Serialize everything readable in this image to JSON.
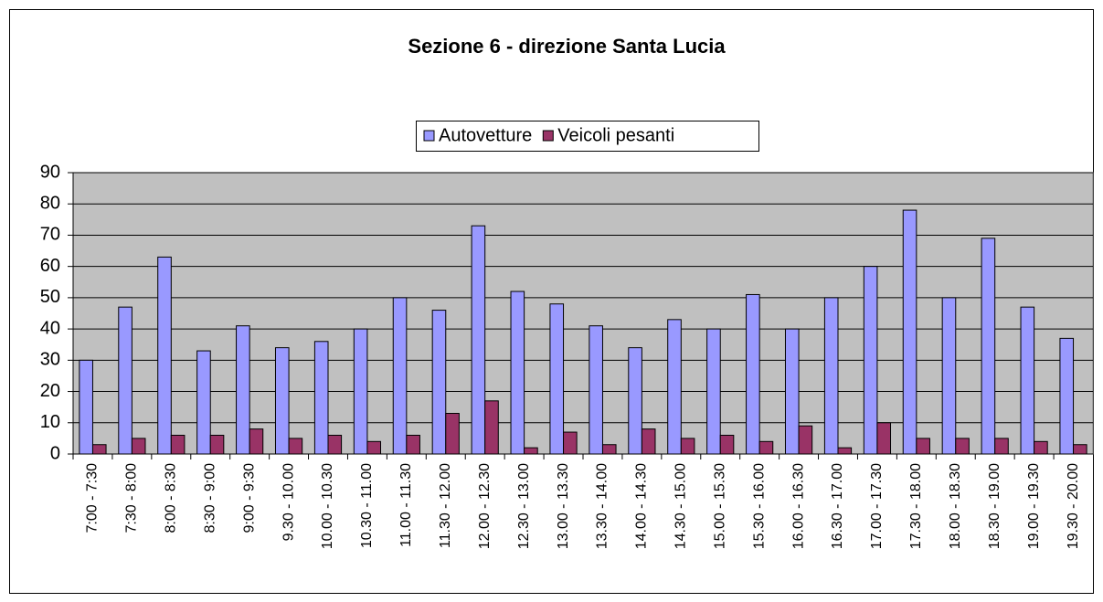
{
  "chart_data": {
    "type": "bar",
    "title": "Sezione 6 - direzione Santa Lucia",
    "categories": [
      "7:00 - 7:30",
      "7:30 - 8:00",
      "8:00 - 8:30",
      "8:30 - 9:00",
      "9:00 - 9:30",
      "9.30 - 10.00",
      "10.00 - 10.30",
      "10.30 - 11.00",
      "11.00 - 11.30",
      "11.30 - 12.00",
      "12.00 - 12.30",
      "12.30 - 13.00",
      "13.00 - 13.30",
      "13.30 - 14.00",
      "14.00 - 14.30",
      "14.30 - 15.00",
      "15.00 - 15.30",
      "15.30 - 16.00",
      "16.00 - 16.30",
      "16.30 - 17.00",
      "17.00 - 17.30",
      "17.30 - 18.00",
      "18.00 - 18.30",
      "18.30 - 19.00",
      "19.00 - 19.30",
      "19.30 - 20.00"
    ],
    "series": [
      {
        "name": "Autovetture",
        "color": "#9999ff",
        "values": [
          30,
          47,
          63,
          33,
          41,
          34,
          36,
          40,
          50,
          46,
          73,
          52,
          48,
          41,
          34,
          43,
          40,
          51,
          40,
          50,
          60,
          78,
          50,
          69,
          47,
          37
        ]
      },
      {
        "name": "Veicoli pesanti",
        "color": "#993366",
        "values": [
          3,
          5,
          6,
          6,
          8,
          5,
          6,
          4,
          6,
          13,
          17,
          2,
          7,
          3,
          8,
          5,
          6,
          4,
          9,
          2,
          10,
          5,
          5,
          5,
          4,
          3
        ]
      }
    ],
    "ylim": [
      0,
      90
    ],
    "yticks": [
      0,
      10,
      20,
      30,
      40,
      50,
      60,
      70,
      80,
      90
    ],
    "grid": true,
    "legend": "top"
  }
}
